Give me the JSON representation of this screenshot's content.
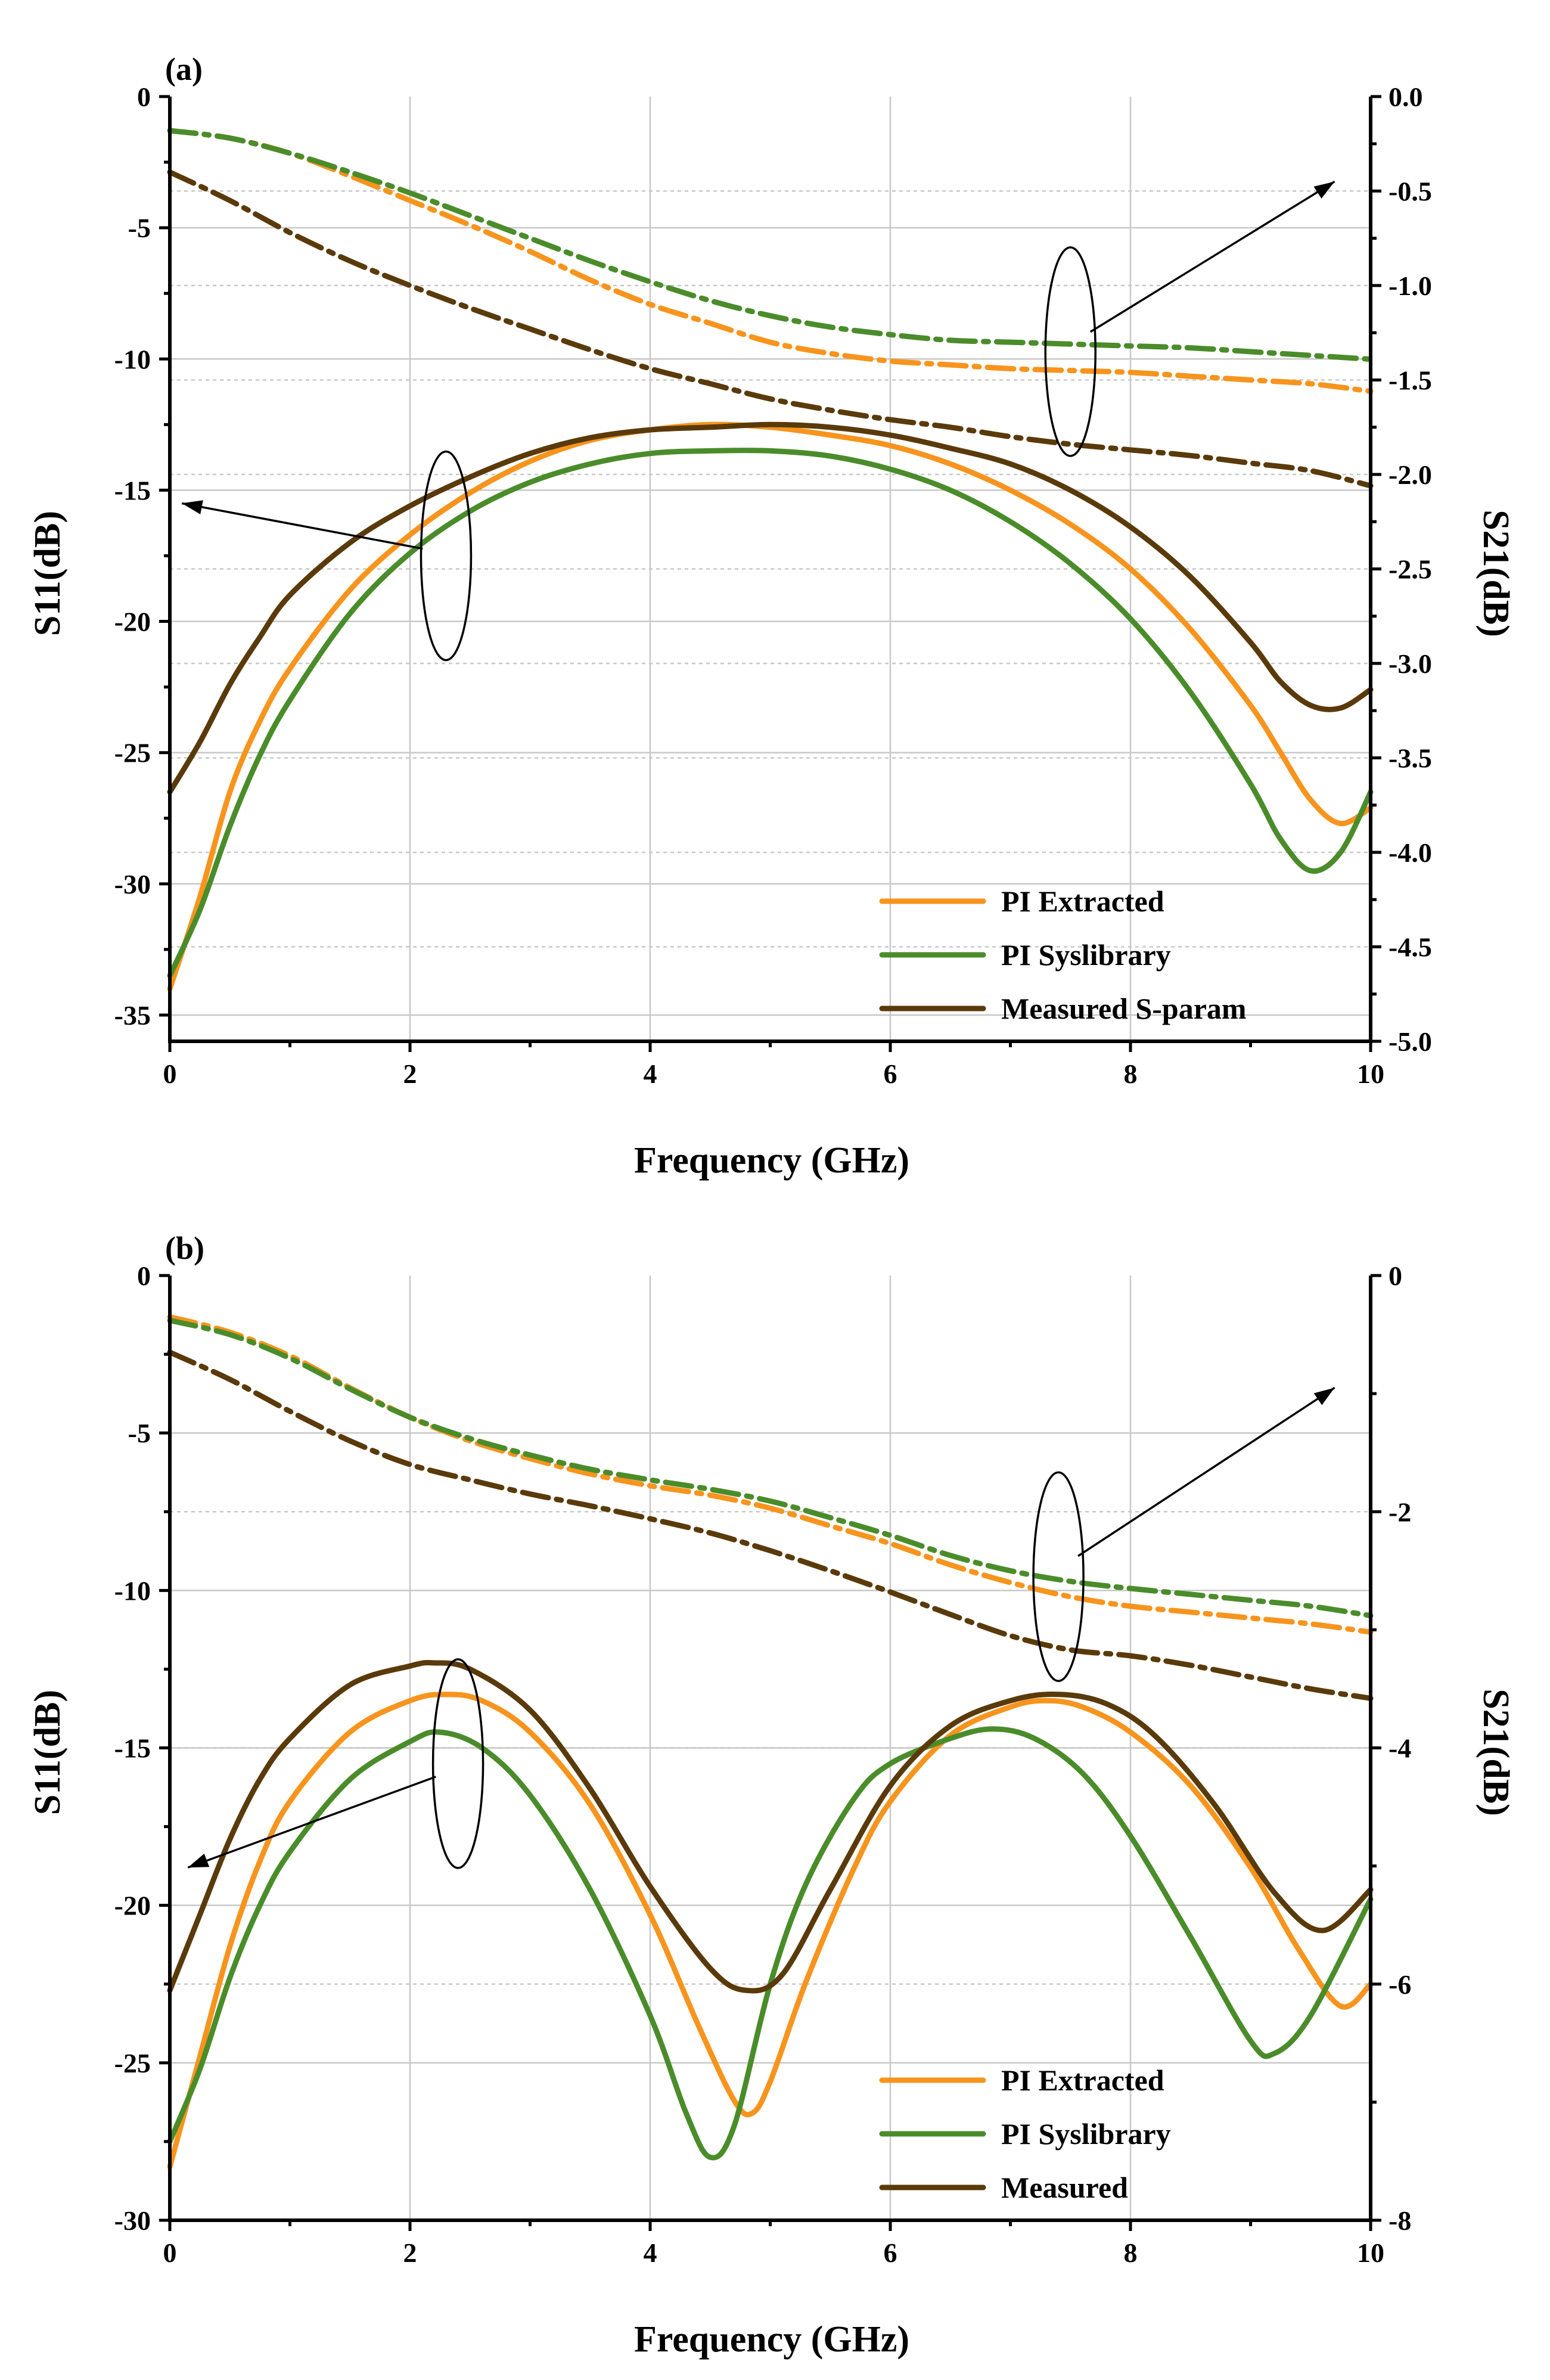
{
  "chart_data": [
    {
      "type": "line",
      "panel_label": "(a)",
      "xlabel": "Frequency (GHz)",
      "ylabel_left": "S11(dB)",
      "ylabel_right": "S21(dB)",
      "xlim": [
        0,
        10
      ],
      "ylim_left": [
        -36,
        0
      ],
      "ylim_right": [
        -5.0,
        0.0
      ],
      "xticks": [
        0,
        2,
        4,
        6,
        8,
        10
      ],
      "xtick_labels": [
        "0",
        "2",
        "4",
        "6",
        "8",
        "10"
      ],
      "yticks_left": [
        0,
        -5,
        -10,
        -15,
        -20,
        -25,
        -30,
        -35
      ],
      "ytick_labels_left": [
        "0",
        "-5",
        "-10",
        "-15",
        "-20",
        "-25",
        "-30",
        "-35"
      ],
      "yticks_right": [
        0.0,
        -0.5,
        -1.0,
        -1.5,
        -2.0,
        -2.5,
        -3.0,
        -3.5,
        -4.0,
        -4.5,
        -5.0
      ],
      "ytick_labels_right": [
        "0.0",
        "-0.5",
        "-1.0",
        "-1.5",
        "-2.0",
        "-2.5",
        "-3.0",
        "-3.5",
        "-4.0",
        "-4.5",
        "-5.0"
      ],
      "legend": {
        "position": "lower-right",
        "entries": [
          {
            "label": "PI Extracted",
            "color": "#f7941d"
          },
          {
            "label": "PI Syslibrary",
            "color": "#4a8c2a"
          },
          {
            "label": "Measured S-param",
            "color": "#5a3a0a"
          }
        ]
      },
      "series": [
        {
          "name": "PI Extracted S11",
          "axis": "left",
          "style": "solid",
          "color": "#f7941d",
          "x": [
            0,
            0.25,
            0.5,
            0.75,
            1,
            1.5,
            2,
            2.5,
            3,
            3.5,
            4,
            4.5,
            5,
            5.5,
            6,
            6.5,
            7,
            7.5,
            8,
            8.5,
            9,
            9.25,
            9.5,
            9.75,
            10
          ],
          "y": [
            -34,
            -30.5,
            -26.5,
            -23.8,
            -21.8,
            -18.8,
            -16.7,
            -15.1,
            -13.9,
            -13.1,
            -12.7,
            -12.5,
            -12.6,
            -12.9,
            -13.3,
            -14.0,
            -15.0,
            -16.3,
            -18.0,
            -20.3,
            -23.2,
            -25.0,
            -26.8,
            -27.7,
            -27.1
          ]
        },
        {
          "name": "PI Syslibrary S11",
          "axis": "left",
          "style": "solid",
          "color": "#4a8c2a",
          "x": [
            0,
            0.25,
            0.5,
            0.75,
            1,
            1.5,
            2,
            2.5,
            3,
            3.5,
            4,
            4.5,
            5,
            5.5,
            6,
            6.5,
            7,
            7.5,
            8,
            8.5,
            9,
            9.25,
            9.5,
            9.75,
            10
          ],
          "y": [
            -33.5,
            -31,
            -27.8,
            -25.1,
            -23,
            -19.7,
            -17.4,
            -15.8,
            -14.7,
            -14.0,
            -13.6,
            -13.5,
            -13.5,
            -13.7,
            -14.2,
            -15.0,
            -16.2,
            -17.8,
            -19.9,
            -22.7,
            -26.2,
            -28.3,
            -29.5,
            -28.8,
            -26.5
          ]
        },
        {
          "name": "Measured S11",
          "axis": "left",
          "style": "solid",
          "color": "#5a3a0a",
          "x": [
            0,
            0.25,
            0.5,
            0.75,
            1,
            1.5,
            2,
            2.5,
            3,
            3.5,
            4,
            4.5,
            5,
            5.5,
            6,
            6.5,
            7,
            7.5,
            8,
            8.5,
            9,
            9.25,
            9.5,
            9.75,
            10
          ],
          "y": [
            -26.5,
            -24.6,
            -22.4,
            -20.6,
            -19.0,
            -17.0,
            -15.6,
            -14.5,
            -13.6,
            -13.0,
            -12.7,
            -12.6,
            -12.5,
            -12.6,
            -12.9,
            -13.4,
            -14.0,
            -15.0,
            -16.4,
            -18.3,
            -20.8,
            -22.3,
            -23.2,
            -23.3,
            -22.6
          ]
        },
        {
          "name": "PI Extracted S21",
          "axis": "right",
          "style": "dashdot",
          "color": "#f7941d",
          "x": [
            0,
            0.5,
            1,
            1.5,
            2,
            2.5,
            3,
            3.5,
            4,
            4.5,
            5,
            5.5,
            6,
            6.5,
            7,
            7.5,
            8,
            8.5,
            9,
            9.5,
            10
          ],
          "y": [
            -0.18,
            -0.22,
            -0.3,
            -0.42,
            -0.55,
            -0.68,
            -0.82,
            -0.97,
            -1.1,
            -1.2,
            -1.3,
            -1.36,
            -1.4,
            -1.42,
            -1.44,
            -1.45,
            -1.46,
            -1.48,
            -1.5,
            -1.52,
            -1.56
          ]
        },
        {
          "name": "PI Syslibrary S21",
          "axis": "right",
          "style": "dashdot",
          "color": "#4a8c2a",
          "x": [
            0,
            0.5,
            1,
            1.5,
            2,
            2.5,
            3,
            3.5,
            4,
            4.5,
            5,
            5.5,
            6,
            6.5,
            7,
            7.5,
            8,
            8.5,
            9,
            9.5,
            10
          ],
          "y": [
            -0.18,
            -0.22,
            -0.3,
            -0.4,
            -0.51,
            -0.63,
            -0.75,
            -0.87,
            -0.98,
            -1.08,
            -1.16,
            -1.22,
            -1.26,
            -1.29,
            -1.3,
            -1.31,
            -1.32,
            -1.33,
            -1.35,
            -1.37,
            -1.39
          ]
        },
        {
          "name": "Measured S21",
          "axis": "right",
          "style": "dashdot",
          "color": "#5a3a0a",
          "x": [
            0,
            0.5,
            1,
            1.5,
            2,
            2.5,
            3,
            3.5,
            4,
            4.5,
            5,
            5.5,
            6,
            6.5,
            7,
            7.5,
            8,
            8.5,
            9,
            9.5,
            10
          ],
          "y": [
            -0.4,
            -0.55,
            -0.72,
            -0.87,
            -1.0,
            -1.12,
            -1.23,
            -1.34,
            -1.44,
            -1.52,
            -1.6,
            -1.66,
            -1.71,
            -1.75,
            -1.8,
            -1.84,
            -1.87,
            -1.9,
            -1.94,
            -1.98,
            -2.06
          ]
        }
      ],
      "annotations": [
        {
          "ellipse_center": [
            2.3,
            -17.5
          ],
          "arrow_to": [
            0.1,
            -15.5
          ],
          "target_axis": "left"
        },
        {
          "ellipse_center": [
            7.5,
            -1.35
          ],
          "arrow_to": [
            9.7,
            -0.45
          ],
          "target_axis": "right"
        }
      ]
    },
    {
      "type": "line",
      "panel_label": "(b)",
      "xlabel": "Frequency (GHz)",
      "ylabel_left": "S11(dB)",
      "ylabel_right": "S21(dB)",
      "xlim": [
        0,
        10
      ],
      "ylim_left": [
        -30,
        0
      ],
      "ylim_right": [
        -8,
        0
      ],
      "xticks": [
        0,
        2,
        4,
        6,
        8,
        10
      ],
      "xtick_labels": [
        "0",
        "2",
        "4",
        "6",
        "8",
        "10"
      ],
      "yticks_left": [
        0,
        -5,
        -10,
        -15,
        -20,
        -25,
        -30
      ],
      "ytick_labels_left": [
        "0",
        "-5",
        "-10",
        "-15",
        "-20",
        "-25",
        "-30"
      ],
      "yticks_right": [
        0,
        -2,
        -4,
        -6,
        -8
      ],
      "ytick_labels_right": [
        "0",
        "-2",
        "-4",
        "-6",
        "-8"
      ],
      "legend": {
        "position": "lower-right",
        "entries": [
          {
            "label": "PI Extracted",
            "color": "#f7941d"
          },
          {
            "label": "PI Syslibrary",
            "color": "#4a8c2a"
          },
          {
            "label": "Measured",
            "color": "#5a3a0a"
          }
        ]
      },
      "series": [
        {
          "name": "PI Extracted S11",
          "axis": "left",
          "style": "solid",
          "color": "#f7941d",
          "x": [
            0,
            0.25,
            0.5,
            0.75,
            1,
            1.5,
            2,
            2.3,
            2.6,
            3,
            3.5,
            4,
            4.4,
            4.7,
            4.85,
            5,
            5.3,
            5.7,
            6,
            6.5,
            7,
            7.3,
            7.6,
            8,
            8.5,
            9,
            9.4,
            9.75,
            10
          ],
          "y": [
            -28.3,
            -24.8,
            -21.3,
            -18.6,
            -16.7,
            -14.5,
            -13.5,
            -13.3,
            -13.5,
            -14.5,
            -16.8,
            -20.3,
            -23.8,
            -26.2,
            -26.6,
            -25.6,
            -22.4,
            -18.8,
            -16.7,
            -14.6,
            -13.7,
            -13.5,
            -13.7,
            -14.5,
            -16.2,
            -18.8,
            -21.4,
            -23.2,
            -22.5
          ]
        },
        {
          "name": "PI Syslibrary S11",
          "axis": "left",
          "style": "solid",
          "color": "#4a8c2a",
          "x": [
            0,
            0.25,
            0.5,
            0.75,
            1,
            1.5,
            2,
            2.25,
            2.6,
            3,
            3.5,
            4,
            4.3,
            4.5,
            4.7,
            5,
            5.3,
            5.7,
            6,
            6.5,
            6.85,
            7.2,
            7.6,
            8,
            8.5,
            9,
            9.2,
            9.5,
            10
          ],
          "y": [
            -27.5,
            -25.2,
            -22.3,
            -20.0,
            -18.3,
            -16.0,
            -14.8,
            -14.5,
            -15.0,
            -16.5,
            -19.5,
            -23.5,
            -26.6,
            -28.0,
            -27.0,
            -22.5,
            -19.3,
            -16.6,
            -15.5,
            -14.7,
            -14.4,
            -14.7,
            -15.8,
            -17.8,
            -21.0,
            -24.3,
            -24.7,
            -23.5,
            -19.8
          ]
        },
        {
          "name": "Measured S11",
          "axis": "left",
          "style": "solid",
          "color": "#5a3a0a",
          "x": [
            0,
            0.25,
            0.5,
            0.75,
            1,
            1.5,
            2,
            2.2,
            2.5,
            3,
            3.5,
            4,
            4.5,
            4.8,
            5.1,
            5.5,
            6,
            6.5,
            7,
            7.4,
            7.8,
            8.2,
            8.7,
            9.2,
            9.6,
            10
          ],
          "y": [
            -22.7,
            -20.3,
            -17.9,
            -16.0,
            -14.7,
            -13.0,
            -12.4,
            -12.3,
            -12.5,
            -13.8,
            -16.3,
            -19.4,
            -22.0,
            -22.7,
            -22.2,
            -19.5,
            -16.2,
            -14.3,
            -13.5,
            -13.3,
            -13.6,
            -14.6,
            -16.8,
            -19.6,
            -20.8,
            -19.5
          ]
        },
        {
          "name": "PI Extracted S21",
          "axis": "right",
          "style": "dashdot",
          "color": "#f7941d",
          "x": [
            0,
            0.5,
            1,
            1.5,
            2,
            2.5,
            3,
            3.5,
            4,
            4.5,
            5,
            5.5,
            6,
            6.5,
            7,
            7.5,
            8,
            8.5,
            9,
            9.5,
            10
          ],
          "y": [
            -0.35,
            -0.48,
            -0.68,
            -0.95,
            -1.2,
            -1.4,
            -1.55,
            -1.68,
            -1.78,
            -1.86,
            -1.97,
            -2.12,
            -2.27,
            -2.45,
            -2.6,
            -2.72,
            -2.8,
            -2.85,
            -2.9,
            -2.95,
            -3.02
          ]
        },
        {
          "name": "PI Syslibrary S21",
          "axis": "right",
          "style": "dashdot",
          "color": "#4a8c2a",
          "x": [
            0,
            0.5,
            1,
            1.5,
            2,
            2.5,
            3,
            3.5,
            4,
            4.5,
            5,
            5.5,
            6,
            6.5,
            7,
            7.5,
            8,
            8.5,
            9,
            9.5,
            10
          ],
          "y": [
            -0.38,
            -0.5,
            -0.7,
            -0.96,
            -1.2,
            -1.38,
            -1.52,
            -1.64,
            -1.73,
            -1.81,
            -1.91,
            -2.05,
            -2.2,
            -2.37,
            -2.5,
            -2.59,
            -2.65,
            -2.7,
            -2.75,
            -2.8,
            -2.88
          ]
        },
        {
          "name": "Measured S21",
          "axis": "right",
          "style": "dashdot",
          "color": "#5a3a0a",
          "x": [
            0,
            0.5,
            1,
            1.5,
            2,
            2.5,
            3,
            3.5,
            4,
            4.5,
            5,
            5.5,
            6,
            6.5,
            7,
            7.5,
            8,
            8.5,
            9,
            9.5,
            10
          ],
          "y": [
            -0.65,
            -0.88,
            -1.15,
            -1.4,
            -1.6,
            -1.73,
            -1.85,
            -1.95,
            -2.06,
            -2.18,
            -2.33,
            -2.5,
            -2.68,
            -2.87,
            -3.05,
            -3.17,
            -3.22,
            -3.3,
            -3.4,
            -3.5,
            -3.58
          ]
        }
      ],
      "annotations": [
        {
          "ellipse_center": [
            2.4,
            -15.5
          ],
          "arrow_to": [
            0.15,
            -18.8
          ],
          "target_axis": "left"
        },
        {
          "ellipse_center": [
            7.4,
            -2.55
          ],
          "arrow_to": [
            9.7,
            -0.95
          ],
          "target_axis": "right"
        }
      ]
    }
  ]
}
